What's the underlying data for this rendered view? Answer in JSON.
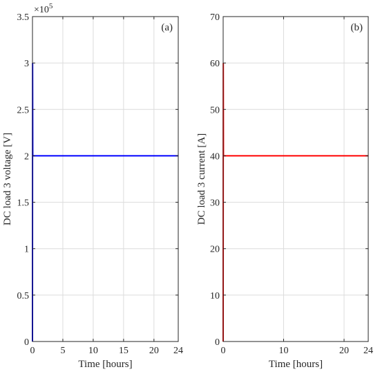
{
  "chart_data": [
    {
      "type": "line",
      "panel_label": "(a)",
      "xlabel": "Time [hours]",
      "ylabel": "DC load 3 voltage [V]",
      "y_exponent_label": "×10",
      "y_exponent_power": "5",
      "xlim": [
        0,
        24
      ],
      "ylim": [
        0,
        3.5
      ],
      "xticks": [
        0,
        5,
        10,
        15,
        20,
        24
      ],
      "yticks": [
        0,
        0.5,
        1,
        1.5,
        2,
        2.5,
        3,
        3.5
      ],
      "ytick_labels": [
        "0",
        "0.5",
        "1",
        "1.5",
        "2",
        "2.5",
        "3",
        "3.5"
      ],
      "grid": true,
      "series": [
        {
          "color": "#0000ff",
          "x": [
            0,
            0.02,
            0.05,
            0.1,
            24
          ],
          "y": [
            0,
            3.0,
            2.0,
            2.0,
            2.0
          ]
        }
      ]
    },
    {
      "type": "line",
      "panel_label": "(b)",
      "xlabel": "Time [hours]",
      "ylabel": "DC load 3 current [A]",
      "xlim": [
        0,
        24
      ],
      "ylim": [
        0,
        70
      ],
      "xticks": [
        0,
        10,
        20,
        24
      ],
      "yticks": [
        0,
        10,
        20,
        30,
        40,
        50,
        60,
        70
      ],
      "ytick_labels": [
        "0",
        "10",
        "20",
        "30",
        "40",
        "50",
        "60",
        "70"
      ],
      "grid": true,
      "series": [
        {
          "color": "#ff0000",
          "x": [
            0,
            0.02,
            0.05,
            0.1,
            24
          ],
          "y": [
            0,
            60,
            40,
            40,
            40
          ]
        }
      ]
    }
  ]
}
